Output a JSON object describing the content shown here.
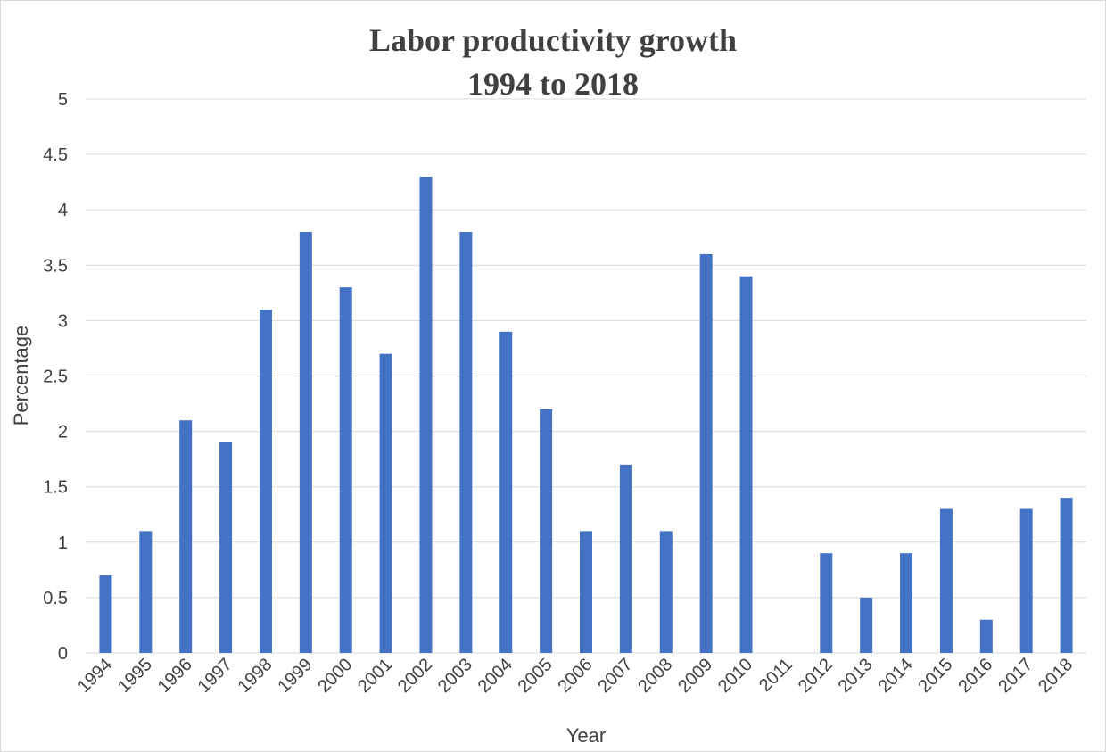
{
  "chart_data": {
    "type": "bar",
    "title_lines": [
      "Labor productivity growth",
      "1994 to 2018"
    ],
    "xlabel": "Year",
    "ylabel": "Percentage",
    "ylim": [
      0,
      5
    ],
    "yticks": [
      "0",
      "0.5",
      "1",
      "1.5",
      "2",
      "2.5",
      "3",
      "3.5",
      "4",
      "4.5",
      "5"
    ],
    "categories": [
      "1994",
      "1995",
      "1996",
      "1997",
      "1998",
      "1999",
      "2000",
      "2001",
      "2002",
      "2003",
      "2004",
      "2005",
      "2006",
      "2007",
      "2008",
      "2009",
      "2010",
      "2011",
      "2012",
      "2013",
      "2014",
      "2015",
      "2016",
      "2017",
      "2018"
    ],
    "values": [
      0.7,
      1.1,
      2.1,
      1.9,
      3.1,
      3.8,
      3.3,
      2.7,
      4.3,
      3.8,
      2.9,
      2.2,
      1.1,
      1.7,
      1.1,
      3.6,
      3.4,
      0,
      0.9,
      0.5,
      0.9,
      1.3,
      0.3,
      1.3,
      1.4
    ],
    "bar_color": "#4472c4",
    "grid_color": "#d9d9d9",
    "grid": true,
    "legend": "none"
  }
}
